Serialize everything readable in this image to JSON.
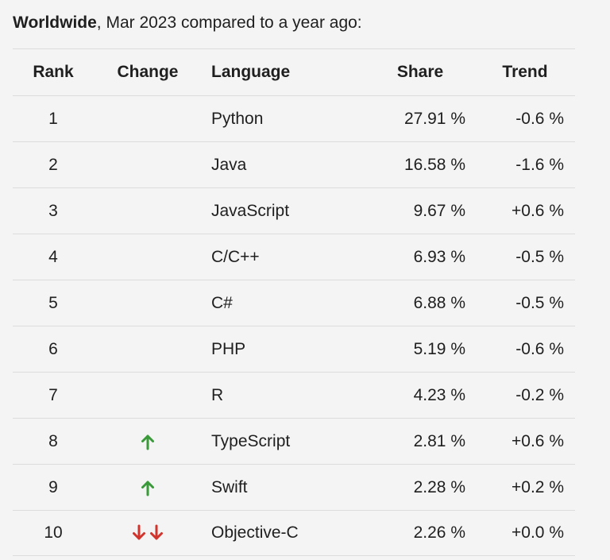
{
  "caption": {
    "bold": "Worldwide",
    "rest": ", Mar 2023 compared to a year ago:"
  },
  "table": {
    "headers": {
      "rank": "Rank",
      "change": "Change",
      "language": "Language",
      "share": "Share",
      "trend": "Trend"
    },
    "rows": [
      {
        "rank": "1",
        "change": "none",
        "language": "Python",
        "share": "27.91 %",
        "trend": "-0.6 %"
      },
      {
        "rank": "2",
        "change": "none",
        "language": "Java",
        "share": "16.58 %",
        "trend": "-1.6 %"
      },
      {
        "rank": "3",
        "change": "none",
        "language": "JavaScript",
        "share": "9.67 %",
        "trend": "+0.6 %"
      },
      {
        "rank": "4",
        "change": "none",
        "language": "C/C++",
        "share": "6.93 %",
        "trend": "-0.5 %"
      },
      {
        "rank": "5",
        "change": "none",
        "language": "C#",
        "share": "6.88 %",
        "trend": "-0.5 %"
      },
      {
        "rank": "6",
        "change": "none",
        "language": "PHP",
        "share": "5.19 %",
        "trend": "-0.6 %"
      },
      {
        "rank": "7",
        "change": "none",
        "language": "R",
        "share": "4.23 %",
        "trend": "-0.2 %"
      },
      {
        "rank": "8",
        "change": "up",
        "language": "TypeScript",
        "share": "2.81 %",
        "trend": "+0.6 %"
      },
      {
        "rank": "9",
        "change": "up",
        "language": "Swift",
        "share": "2.28 %",
        "trend": "+0.2 %"
      },
      {
        "rank": "10",
        "change": "double-down",
        "language": "Objective-C",
        "share": "2.26 %",
        "trend": "+0.0 %"
      }
    ]
  },
  "colors": {
    "up_arrow": "#3a9a3a",
    "down_arrow": "#d0342c"
  },
  "icons": {
    "up": "arrow-up-icon",
    "double-down": "double-arrow-down-icon"
  }
}
